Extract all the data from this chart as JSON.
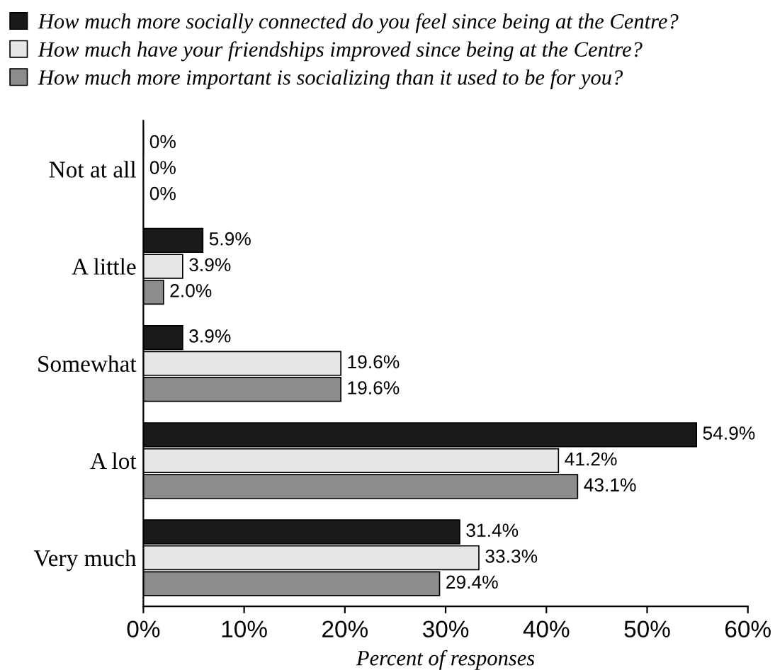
{
  "chart_data": {
    "type": "bar",
    "orientation": "horizontal",
    "xlabel": "Percent of responses",
    "categories": [
      "Not at all",
      "A little",
      "Somewhat",
      "A lot",
      "Very much"
    ],
    "series": [
      {
        "name": "How much more socially connected do you feel since being at the Centre?",
        "color": "#1a1a1a",
        "values": [
          0,
          5.9,
          3.9,
          54.9,
          31.4
        ],
        "value_labels": [
          "0%",
          "5.9%",
          "3.9%",
          "54.9%",
          "31.4%"
        ]
      },
      {
        "name": "How much have your friendships improved since being at the Centre?",
        "color": "#e6e6e6",
        "values": [
          0,
          3.9,
          19.6,
          41.2,
          33.3
        ],
        "value_labels": [
          "0%",
          "3.9%",
          "19.6%",
          "41.2%",
          "33.3%"
        ]
      },
      {
        "name": "How much more important is socializing than it used to be for you?",
        "color": "#8c8c8c",
        "values": [
          0,
          2.0,
          19.6,
          43.1,
          29.4
        ],
        "value_labels": [
          "0%",
          "2.0%",
          "19.6%",
          "43.1%",
          "29.4%"
        ]
      }
    ],
    "xlim": [
      0,
      60
    ],
    "xticks": [
      {
        "value": 0,
        "label": "0%"
      },
      {
        "value": 10,
        "label": "10%"
      },
      {
        "value": 20,
        "label": "20%"
      },
      {
        "value": 30,
        "label": "30%"
      },
      {
        "value": 40,
        "label": "40%"
      },
      {
        "value": 50,
        "label": "50%"
      },
      {
        "value": 60,
        "label": "60%"
      }
    ],
    "legend": "top",
    "grid": false
  }
}
